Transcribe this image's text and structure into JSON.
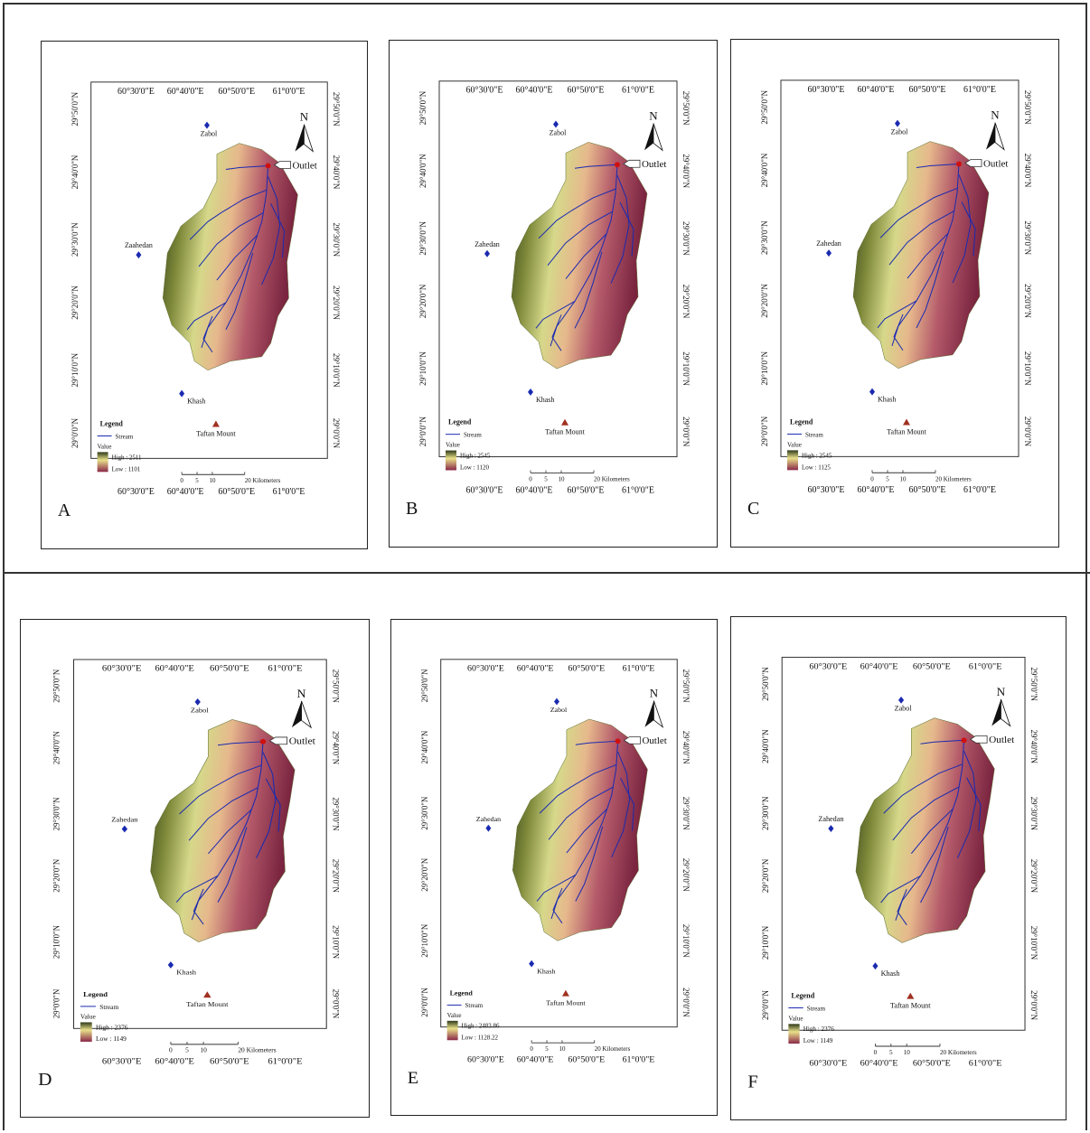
{
  "lon_labels": [
    "60°30'0\"E",
    "60°40'0\"E",
    "60°50'0\"E",
    "61°0'0\"E"
  ],
  "lat_labels": [
    "29°50'0\"N",
    "29°40'0\"N",
    "29°30'0\"N",
    "29°20'0\"N",
    "29°10'0\"N",
    "29°0'0\"N"
  ],
  "north": "N",
  "outlet": "Outlet",
  "legend_title": "Legend",
  "stream": "Stream",
  "value": "Value",
  "scale_labels": [
    "0",
    "5",
    "10",
    "20 Kilometers"
  ],
  "panels": [
    {
      "letter": "A",
      "zabol": "Zabol",
      "zahedan": "Zaahedan",
      "khash": "Khash",
      "taftan": "Taftan Mount",
      "high": "High : 2511",
      "low": "Low : 1101"
    },
    {
      "letter": "B",
      "zabol": "Zabol",
      "zahedan": "Zahedan",
      "khash": "Khash",
      "taftan": "Taftan Mount",
      "high": "High : 2545",
      "low": "Low : 1120"
    },
    {
      "letter": "C",
      "zabol": "Zabol",
      "zahedan": "Zahedan",
      "khash": "Khash",
      "taftan": "Taftan Mount",
      "high": "High : 2545",
      "low": "Low : 1125"
    },
    {
      "letter": "D",
      "zabol": "Zabol",
      "zahedan": "Zahedan",
      "khash": "Khash",
      "taftan": "Taftan Mount",
      "high": "High : 2376",
      "low": "Low : 1149"
    },
    {
      "letter": "E",
      "zabol": "Zabol",
      "zahedan": "Zahedan",
      "khash": "Khash",
      "taftan": "Taftan Mount",
      "high": "High : 2483.86",
      "low": "Low : 1128.22"
    },
    {
      "letter": "F",
      "zabol": "Zabol",
      "zahedan": "Zahedan",
      "khash": "Khash",
      "taftan": "Taftan Mount",
      "high": "High : 2376",
      "low": "Low : 1149"
    }
  ]
}
